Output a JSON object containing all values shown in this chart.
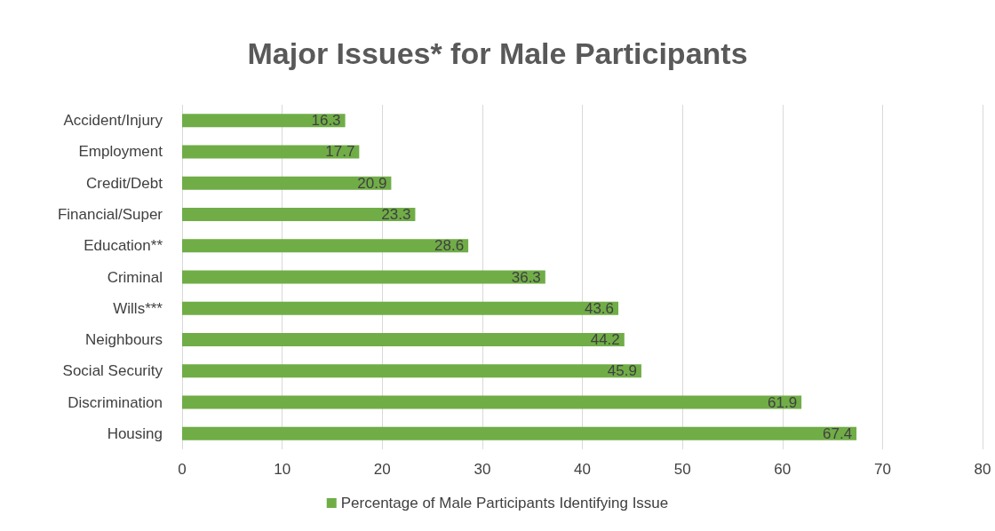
{
  "chart_data": {
    "type": "bar",
    "orientation": "horizontal",
    "title": "Major Issues* for Male Participants",
    "categories": [
      "Accident/Injury",
      "Employment",
      "Credit/Debt",
      "Financial/Super",
      "Education**",
      "Criminal",
      "Wills***",
      "Neighbours",
      "Social Security",
      "Discrimination",
      "Housing"
    ],
    "series": [
      {
        "name": "Percentage of Male Participants Identifying Issue",
        "color": "#70ad47",
        "values": [
          16.3,
          17.7,
          20.9,
          23.3,
          28.6,
          36.3,
          43.6,
          44.2,
          45.9,
          61.9,
          67.4
        ]
      }
    ],
    "xlim": [
      0,
      80
    ],
    "xticks": [
      0,
      10,
      20,
      30,
      40,
      50,
      60,
      70,
      80
    ],
    "grid": "x",
    "legend": "bottom",
    "data_labels": true
  }
}
